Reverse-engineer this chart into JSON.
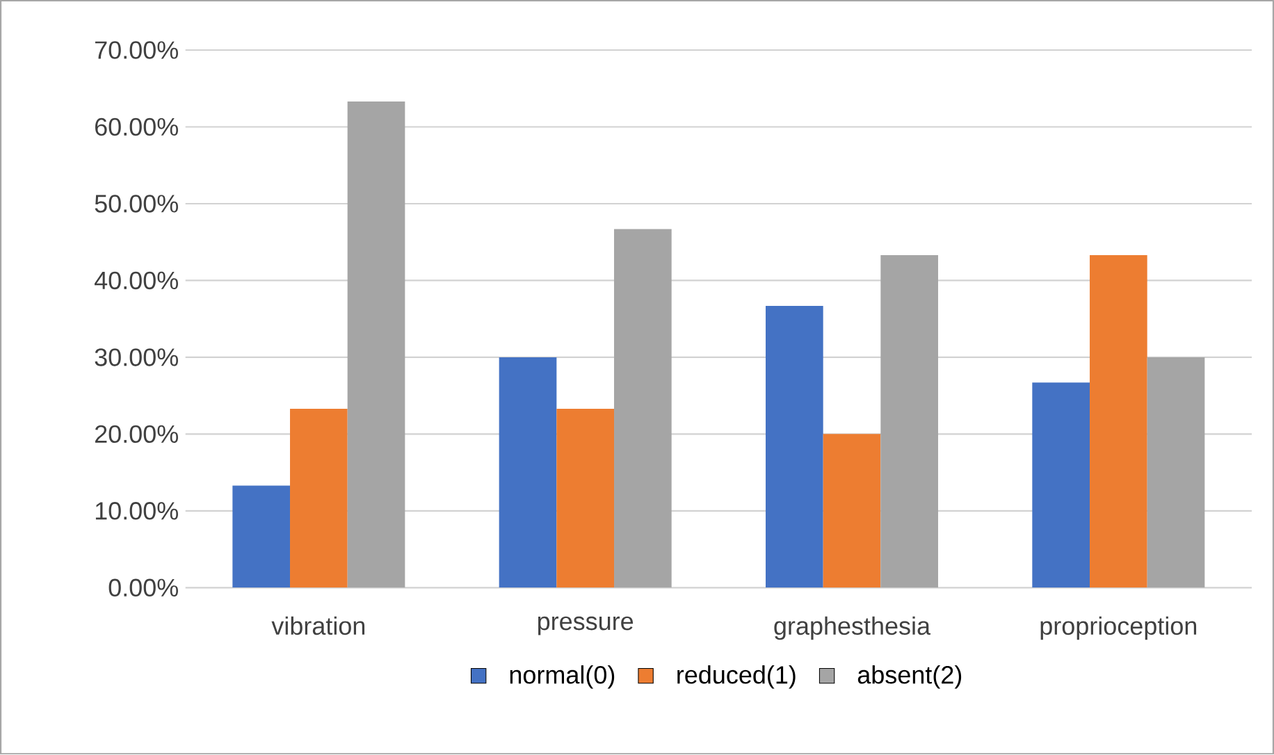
{
  "chart_data": {
    "type": "bar",
    "categories": [
      "vibration",
      "pressure",
      "graphesthesia",
      "proprioception"
    ],
    "series": [
      {
        "name": "normal(0)",
        "color": "#4472c4",
        "values": [
          13.3,
          30.0,
          36.7,
          26.7
        ]
      },
      {
        "name": "reduced(1)",
        "color": "#ed7d31",
        "values": [
          23.3,
          23.3,
          20.0,
          43.3
        ]
      },
      {
        "name": "absent(2)",
        "color": "#a5a5a5",
        "values": [
          63.3,
          46.7,
          43.3,
          30.0
        ]
      }
    ],
    "ylim": [
      0,
      70
    ],
    "yticks": [
      {
        "value": 0,
        "label": "0.00%"
      },
      {
        "value": 10,
        "label": "10.00%"
      },
      {
        "value": 20,
        "label": "20.00%"
      },
      {
        "value": 30,
        "label": "30.00%"
      },
      {
        "value": 40,
        "label": "40.00%"
      },
      {
        "value": 50,
        "label": "50.00%"
      },
      {
        "value": 60,
        "label": "60.00%"
      },
      {
        "value": 70,
        "label": "70.00%"
      }
    ],
    "grid": "y",
    "legend": "bottom"
  }
}
